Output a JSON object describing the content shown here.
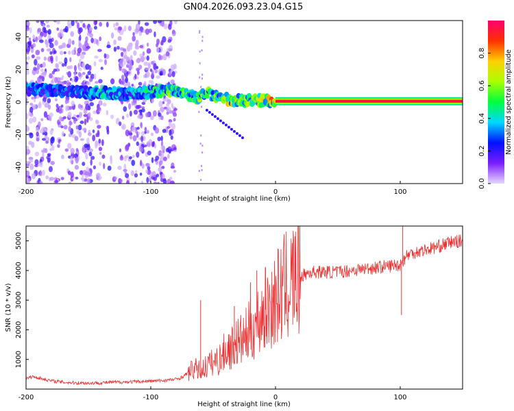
{
  "title": "GN04.2026.093.23.04.G15",
  "chart_data": [
    {
      "type": "heatmap",
      "xlabel": "Height of straight line (km)",
      "ylabel": "Frequency (Hz)",
      "xlim": [
        -200,
        150
      ],
      "ylim": [
        -50,
        50
      ],
      "xticks": [
        -200,
        -100,
        0,
        100
      ],
      "yticks": [
        -40,
        -20,
        0,
        20,
        40
      ],
      "grid": false,
      "colorbar": {
        "label": "Normalized spectral amplitude",
        "range": [
          0,
          1
        ],
        "ticks": [
          "0.0",
          "0.2",
          "0.4",
          "0.6",
          "0.8"
        ],
        "colors": [
          "#e8d8ff",
          "#7a1eff",
          "#0010ff",
          "#00d8ff",
          "#00ff40",
          "#a8ff00",
          "#ffd000",
          "#ff3000",
          "#ff0070"
        ]
      },
      "ridge": {
        "x": [
          -200,
          -180,
          -160,
          -140,
          -120,
          -100,
          -90,
          -80,
          -70,
          -62,
          -55,
          -50,
          -45,
          -40,
          -30,
          -20,
          -10,
          0,
          20,
          50,
          100,
          150
        ],
        "y": [
          8,
          7,
          6,
          6,
          5,
          6,
          7,
          7,
          5,
          2,
          6,
          3,
          3,
          2,
          1,
          1,
          1,
          0.5,
          0.5,
          0.5,
          0.5,
          0.5
        ],
        "amplitude": [
          0.35,
          0.3,
          0.3,
          0.45,
          0.35,
          0.45,
          0.5,
          0.55,
          0.5,
          0.6,
          0.55,
          0.55,
          0.6,
          0.65,
          0.65,
          0.65,
          0.7,
          0.75,
          0.9,
          0.95,
          0.95,
          0.95
        ]
      },
      "scatter_region": {
        "x": [
          -200,
          -80
        ],
        "y": [
          -50,
          50
        ],
        "amplitude": [
          0.02,
          0.22
        ]
      }
    },
    {
      "type": "line",
      "xlabel": "Height of straight line (km)",
      "ylabel": "SNR (10 * v/v)",
      "xlim": [
        -200,
        150
      ],
      "ylim": [
        0,
        5500
      ],
      "xticks": [
        -200,
        -100,
        0,
        100
      ],
      "yticks": [
        1000,
        2000,
        3000,
        4000,
        5000
      ],
      "grid": false,
      "color": "#ee3030",
      "series": [
        {
          "x": [
            -200,
            -195,
            -190,
            -180,
            -170,
            -160,
            -150,
            -140,
            -130,
            -120,
            -110,
            -100,
            -90,
            -80,
            -75,
            -70,
            -65,
            -60,
            -55,
            -50,
            -45,
            -40,
            -35,
            -30,
            -25,
            -20,
            -15,
            -10,
            -5,
            0,
            5,
            10,
            15,
            20,
            25,
            30,
            40,
            50,
            60,
            70,
            80,
            90,
            100,
            105,
            110,
            120,
            130,
            140,
            150
          ],
          "y": [
            350,
            420,
            380,
            280,
            230,
            210,
            200,
            210,
            230,
            240,
            250,
            270,
            290,
            330,
            400,
            550,
            700,
            600,
            800,
            900,
            1000,
            1300,
            1400,
            1600,
            1700,
            2000,
            2200,
            2600,
            2800,
            3000,
            3300,
            3500,
            3700,
            3800,
            3900,
            3950,
            3950,
            3950,
            4000,
            4050,
            4100,
            4150,
            4200,
            4500,
            4600,
            4700,
            4800,
            4950,
            5000
          ],
          "spikes": [
            {
              "x": -60,
              "y": 3000
            },
            {
              "x": -33,
              "y": 2800
            },
            {
              "x": -20,
              "y": 3600
            },
            {
              "x": -15,
              "y": 4000
            },
            {
              "x": -8,
              "y": 4100
            },
            {
              "x": -2,
              "y": 3100
            },
            {
              "x": 101,
              "y": 2500
            },
            {
              "x": 102,
              "y": 5500
            }
          ]
        }
      ]
    }
  ]
}
